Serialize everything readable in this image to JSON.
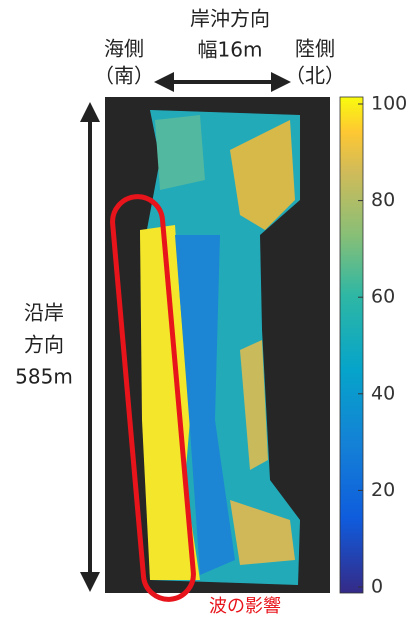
{
  "header": {
    "cross_shore": "岸沖方向",
    "width": "幅16m",
    "sea_side": "海側",
    "south": "（南）",
    "land_side": "陸側",
    "north": "（北）"
  },
  "alongshore": {
    "line1": "沿岸",
    "line2": "方向",
    "length": "585m"
  },
  "annotation": "波の影響",
  "colorbar": {
    "range": [
      0,
      100
    ],
    "ticks": [
      0,
      20,
      40,
      60,
      80,
      100
    ]
  }
}
